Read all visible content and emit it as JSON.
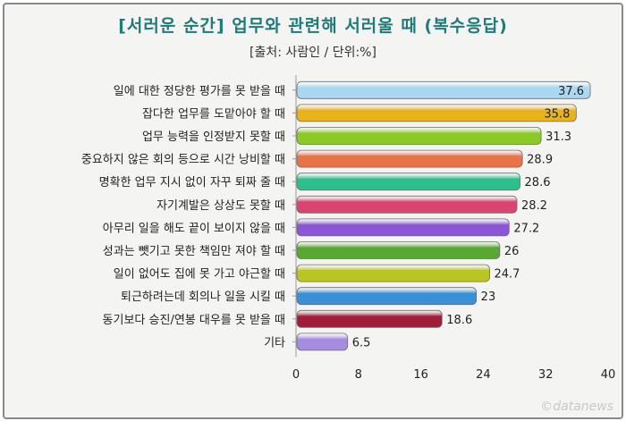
{
  "chart_data": {
    "type": "bar",
    "orientation": "horizontal",
    "title": "[서러운 순간] 업무와 관련해 서러울 때 (복수응답)",
    "subtitle": "[출처: 사람인 / 단위:%]",
    "categories": [
      "일에 대한 정당한 평가를 못 받을 때",
      "잡다한 업무를 도맡아야 할 때",
      "업무 능력을 인정받지 못할 때",
      "중요하지 않은 회의 등으로 시간 낭비할 때",
      "명확한 업무 지시 없이 자꾸 퇴짜 줄 때",
      "자기계발은 상상도 못할 때",
      "아무리 일을 해도 끝이 보이지 않을 때",
      "성과는 뺏기고 못한 책임만 져야 할 때",
      "일이 없어도 집에 못 가고 야근할 때",
      "퇴근하려는데 회의나 일을 시킬 때",
      "동기보다 승진/연봉 대우를 못 받을 때",
      "기타"
    ],
    "values": [
      37.6,
      35.8,
      31.3,
      28.9,
      28.6,
      28.2,
      27.2,
      26,
      24.7,
      23,
      18.6,
      6.5
    ],
    "value_labels": [
      "37.6",
      "35.8",
      "31.3",
      "28.9",
      "28.6",
      "28.2",
      "27.2",
      "26",
      "24.7",
      "23",
      "18.6",
      "6.5"
    ],
    "colors": [
      "#a9d8f0",
      "#e8b21a",
      "#8ac926",
      "#e8734a",
      "#2fbf8f",
      "#d9456f",
      "#8b56d6",
      "#58a832",
      "#b9c521",
      "#3a8fd8",
      "#a01c38",
      "#a58ce0"
    ],
    "xlim": [
      0,
      40
    ],
    "xticks": [
      0,
      8,
      16,
      24,
      32,
      40
    ],
    "xtick_labels": [
      "0",
      "8",
      "16",
      "24",
      "32",
      "40"
    ],
    "grid": false,
    "legend": "none"
  },
  "watermark": "©datanews"
}
